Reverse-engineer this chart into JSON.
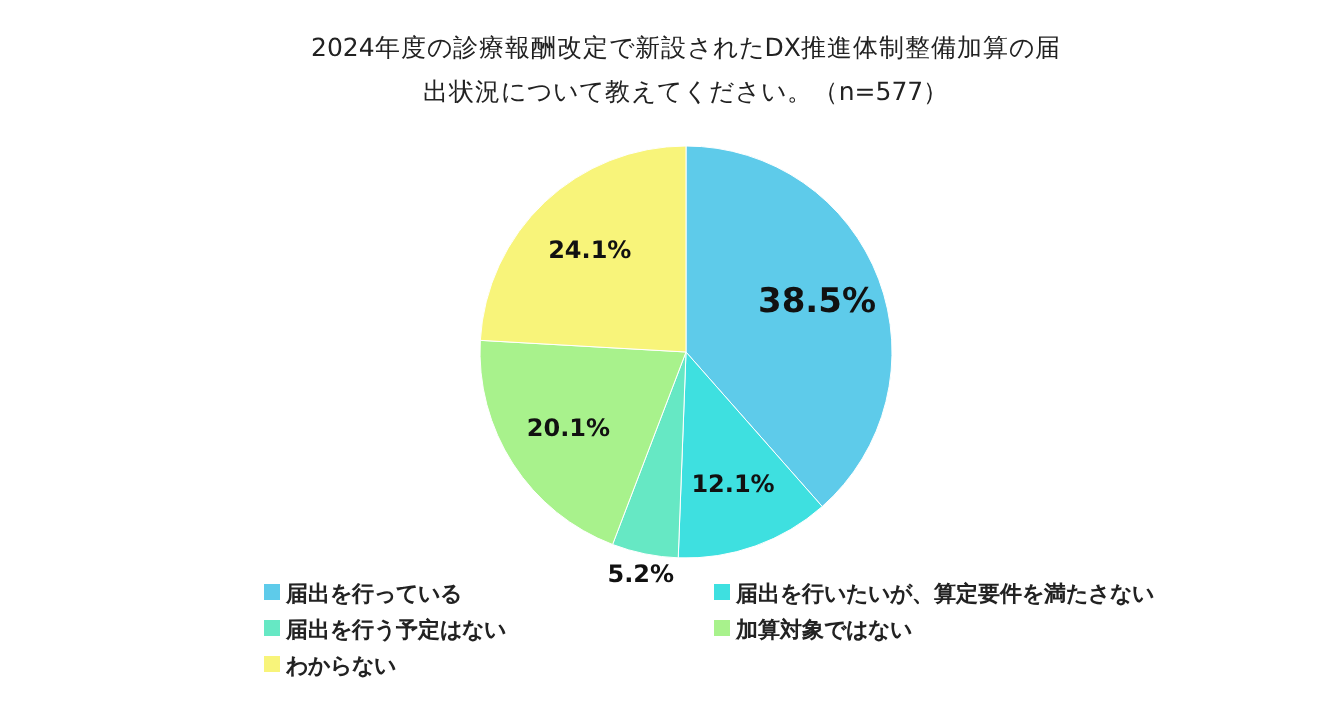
{
  "chart_data": {
    "type": "pie",
    "title": "2024年度の診療報酬改定で新設されたDX推進体制整備加算の届出状況について教えてください。（n=577）",
    "categories": [
      "届出を行っている",
      "届出を行いたいが、算定要件を満たさない",
      "届出を行う予定はない",
      "加算対象ではない",
      "わからない"
    ],
    "values": [
      38.5,
      12.1,
      5.2,
      20.1,
      24.1
    ],
    "colors": [
      "#5ecbea",
      "#3ee0e0",
      "#66e8c4",
      "#a8f28c",
      "#f8f47a"
    ],
    "value_labels": [
      "38.5%",
      "12.1%",
      "5.2%",
      "20.1%",
      "24.1%"
    ],
    "legend": "bottom"
  }
}
